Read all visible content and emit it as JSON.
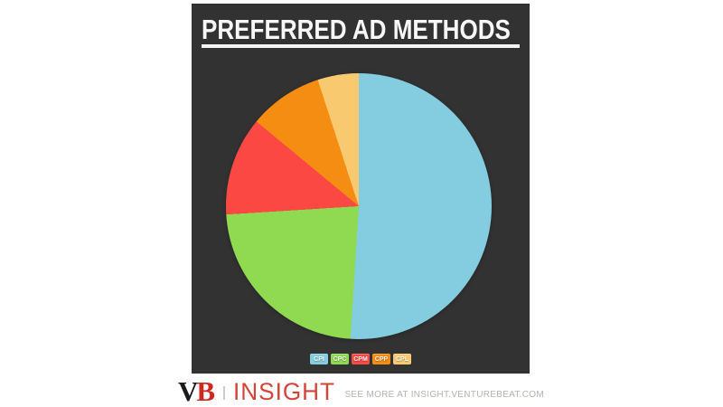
{
  "panel": {
    "background": "#323232"
  },
  "chart_data": {
    "type": "pie",
    "title": "PREFERRED AD METHODS",
    "direction": "clockwise",
    "start_angle_deg": 0,
    "legend_position": "bottom",
    "segments": [
      {
        "label": "CPI",
        "value_pct": 51,
        "color": "#84ccdf"
      },
      {
        "label": "CPC",
        "value_pct": 23,
        "color": "#90da52"
      },
      {
        "label": "CPM",
        "value_pct": 12,
        "color": "#fc4843"
      },
      {
        "label": "CPP",
        "value_pct": 9,
        "color": "#f68d13"
      },
      {
        "label": "CPL",
        "value_pct": 5,
        "color": "#f9c96f"
      }
    ]
  },
  "footer": {
    "logo": {
      "v": "V",
      "b": "B",
      "v_color": "#1b1b1b",
      "b_color": "#cf2720",
      "insight": "INSIGHT",
      "insight_color": "#d5443a"
    },
    "see_more": "SEE MORE AT INSIGHT.VENTUREBEAT.COM"
  }
}
